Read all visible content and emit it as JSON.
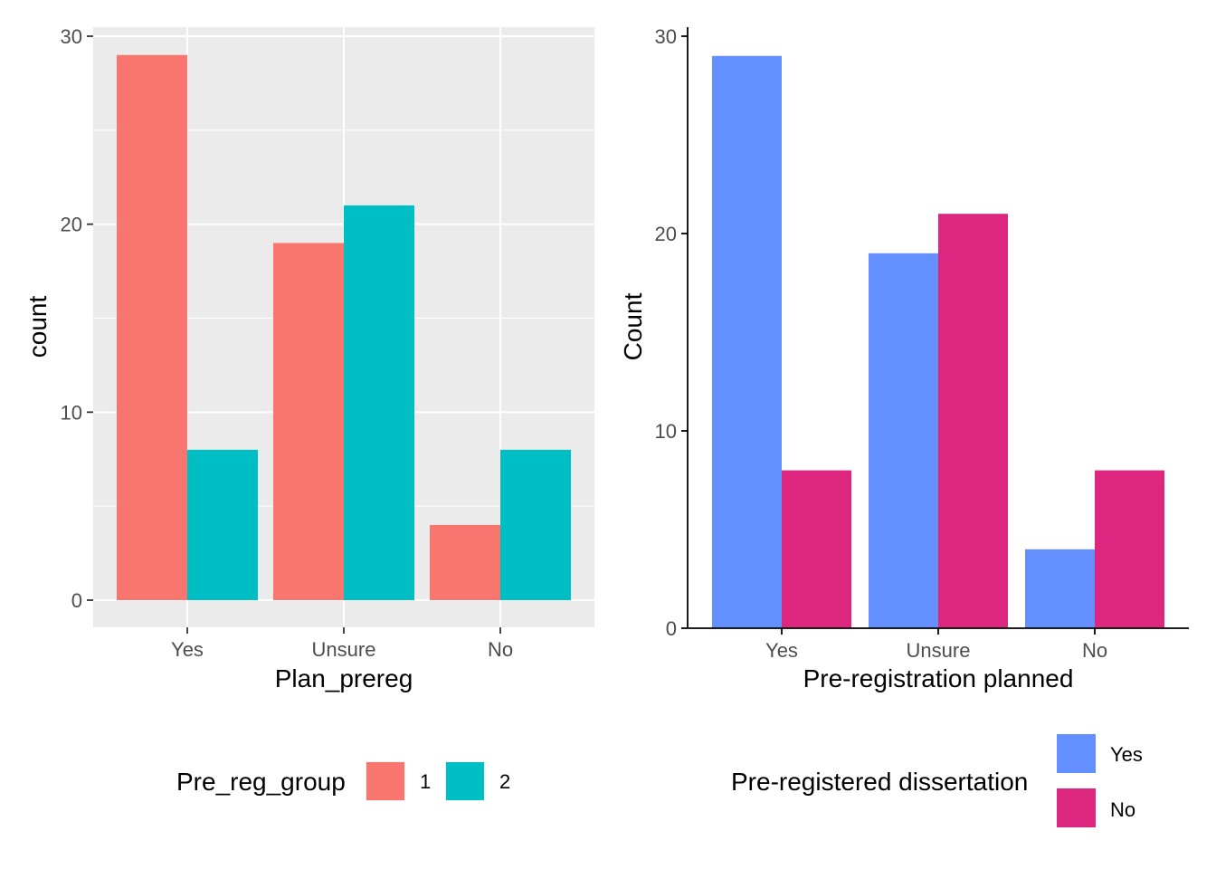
{
  "chart_data": [
    {
      "type": "bar",
      "categories": [
        "Yes",
        "Unsure",
        "No"
      ],
      "series": [
        {
          "name": "1",
          "values": [
            29,
            19,
            4
          ],
          "color": "#F8766D"
        },
        {
          "name": "2",
          "values": [
            8,
            21,
            8
          ],
          "color": "#00BFC4"
        }
      ],
      "xlabel": "Plan_prereg",
      "ylabel": "count",
      "ylim": [
        0,
        30
      ],
      "yticks": [
        0,
        10,
        20,
        30
      ],
      "grid": true,
      "legend": {
        "title": "Pre_reg_group",
        "position": "bottom"
      }
    },
    {
      "type": "bar",
      "categories": [
        "Yes",
        "Unsure",
        "No"
      ],
      "series": [
        {
          "name": "Yes",
          "values": [
            29,
            19,
            4
          ],
          "color": "#648FFF"
        },
        {
          "name": "No",
          "values": [
            8,
            21,
            8
          ],
          "color": "#DC267F"
        }
      ],
      "xlabel": "Pre-registration planned",
      "ylabel": "Count",
      "ylim": [
        0,
        30
      ],
      "yticks": [
        0,
        10,
        20,
        30
      ],
      "grid": false,
      "legend": {
        "title": "Pre-registered dissertation",
        "position": "bottom"
      }
    }
  ]
}
